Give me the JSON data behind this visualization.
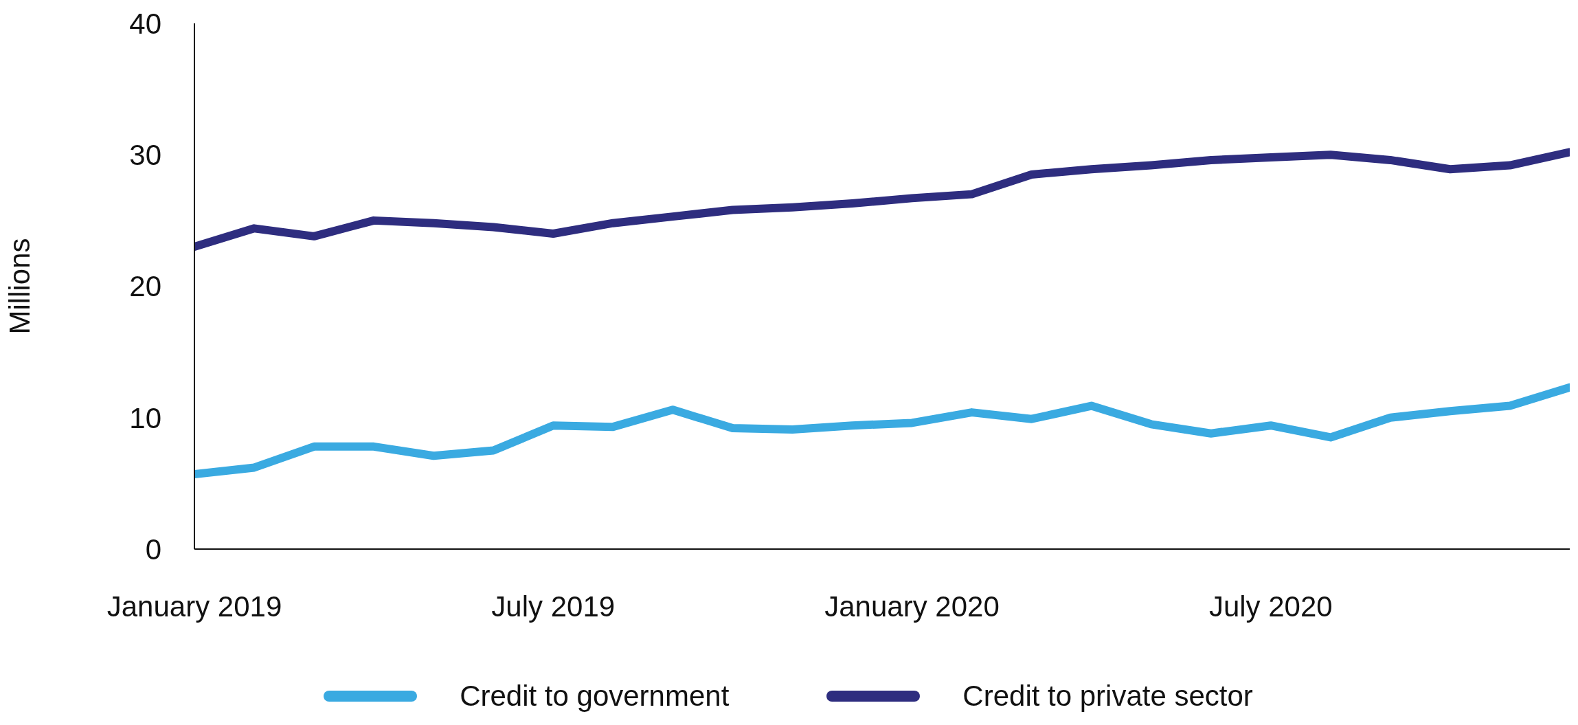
{
  "chart_data": {
    "type": "line",
    "ylabel": "Millions",
    "x": [
      "2019-01",
      "2019-02",
      "2019-03",
      "2019-04",
      "2019-05",
      "2019-06",
      "2019-07",
      "2019-08",
      "2019-09",
      "2019-10",
      "2019-11",
      "2019-12",
      "2020-01",
      "2020-02",
      "2020-03",
      "2020-04",
      "2020-05",
      "2020-06",
      "2020-07",
      "2020-08",
      "2020-09",
      "2020-10",
      "2020-11",
      "2020-12"
    ],
    "series": [
      {
        "name": "Credit to government",
        "color": "#3aaae1",
        "values": [
          5.7,
          6.2,
          7.8,
          7.8,
          7.1,
          7.5,
          9.4,
          9.3,
          10.6,
          9.2,
          9.1,
          9.4,
          9.6,
          10.4,
          9.9,
          10.9,
          9.5,
          8.8,
          9.4,
          8.5,
          10.0,
          10.5,
          10.9,
          12.3
        ]
      },
      {
        "name": "Credit to private sector",
        "color": "#2e2d7f",
        "values": [
          23.0,
          24.4,
          23.8,
          25.0,
          24.8,
          24.5,
          24.0,
          24.8,
          25.3,
          25.8,
          26.0,
          26.3,
          26.7,
          27.0,
          28.5,
          28.9,
          29.2,
          29.6,
          29.8,
          30.0,
          29.6,
          28.9,
          29.2,
          30.2
        ]
      }
    ],
    "xlim": [
      "2019-01",
      "2020-12"
    ],
    "xticks": [
      {
        "value": "2019-01",
        "label": "January 2019"
      },
      {
        "value": "2019-07",
        "label": "July 2019"
      },
      {
        "value": "2020-01",
        "label": "January 2020"
      },
      {
        "value": "2020-07",
        "label": "July 2020"
      }
    ],
    "ylim": [
      0,
      40
    ],
    "yticks": [
      0,
      10,
      20,
      30,
      40
    ],
    "grid": false,
    "legend": "bottom",
    "line_style": "solid",
    "marker": "none"
  }
}
